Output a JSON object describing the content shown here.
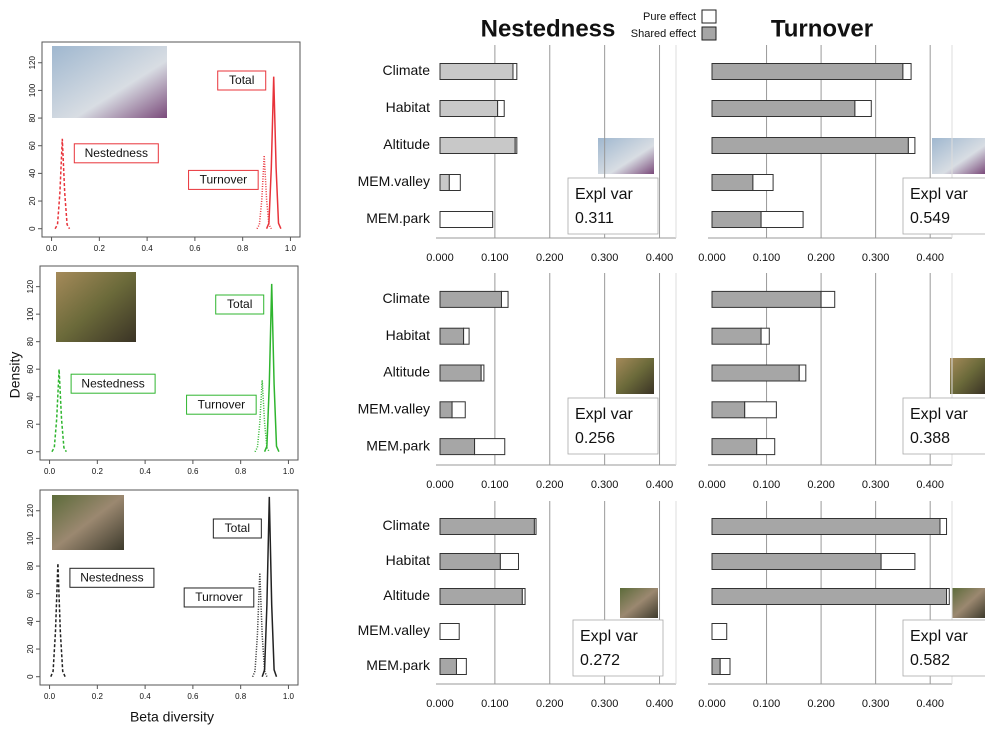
{
  "header": {
    "nestedness": "Nestedness",
    "turnover": "Turnover",
    "legend": [
      {
        "name": "Pure effect",
        "color": "#ffffff"
      },
      {
        "name": "Shared effect",
        "color": "#a6a6a6"
      }
    ],
    "y_label": "Density",
    "x_label": "Beta diversity"
  },
  "chart_data": [
    {
      "type": "line",
      "ylim": [
        -6,
        135
      ],
      "yticks": [
        0,
        20,
        40,
        60,
        80,
        100,
        120
      ],
      "xlim": [
        -0.04,
        1.04
      ],
      "xticks": [
        {
          "value": 0,
          "label": "0.0"
        },
        {
          "value": 0.2,
          "label": "0.2"
        },
        {
          "value": 0.4,
          "label": "0.4"
        },
        {
          "value": 0.6,
          "label": "0.6"
        },
        {
          "value": 0.8,
          "label": "0.8"
        },
        {
          "value": 1,
          "label": "1.0"
        }
      ],
      "series": [
        {
          "name": "Nestedness",
          "color": "#e8333a",
          "dash": "dashed",
          "x": [
            0.015,
            0.025,
            0.035,
            0.045,
            0.055,
            0.065,
            0.075
          ],
          "values": [
            0,
            3,
            26,
            65,
            26,
            3,
            0
          ]
        },
        {
          "name": "Turnover",
          "color": "#e8333a",
          "dash": "dotted",
          "x": [
            0.86,
            0.87,
            0.88,
            0.89,
            0.9,
            0.91,
            0.92
          ],
          "values": [
            0,
            3,
            21,
            53,
            21,
            3,
            0
          ]
        },
        {
          "name": "Total",
          "color": "#e8333a",
          "dash": "solid",
          "x": [
            0.9,
            0.91,
            0.92,
            0.93,
            0.94,
            0.95,
            0.96
          ],
          "values": [
            0,
            4,
            44,
            110,
            44,
            4,
            0
          ]
        }
      ]
    },
    {
      "type": "bar",
      "orientation": "horizontal",
      "stacked": true,
      "grid": true,
      "categories": [
        "Climate",
        "Habitat",
        "Altitude",
        "MEM.valley",
        "MEM.park"
      ],
      "series": [
        {
          "color": "#c8c8c8",
          "values": [
            0.133,
            0.105,
            0.137,
            0.017,
            0
          ]
        },
        {
          "color": "#ffffff",
          "values": [
            0.007,
            0.012,
            0.003,
            0.02,
            0.096
          ]
        }
      ],
      "xlim": [
        0,
        0.43
      ],
      "xticks": [
        {
          "value": 0,
          "label": "0.000"
        },
        {
          "value": 0.1,
          "label": "0.100"
        },
        {
          "value": 0.2,
          "label": "0.200"
        },
        {
          "value": 0.3,
          "label": "0.300"
        },
        {
          "value": 0.4,
          "label": "0.400"
        }
      ],
      "annotation_label": "Expl var",
      "annotation_value": 0.311
    },
    {
      "type": "bar",
      "orientation": "horizontal",
      "stacked": true,
      "grid": true,
      "series": [
        {
          "color": "#a6a6a6",
          "values": [
            0.35,
            0.262,
            0.36,
            0.075,
            0.09
          ]
        },
        {
          "color": "#ffffff",
          "values": [
            0.015,
            0.03,
            0.012,
            0.037,
            0.077
          ]
        }
      ],
      "xlim": [
        0,
        0.44
      ],
      "xticks": [
        {
          "value": 0,
          "label": "0.000"
        },
        {
          "value": 0.1,
          "label": "0.100"
        },
        {
          "value": 0.2,
          "label": "0.200"
        },
        {
          "value": 0.3,
          "label": "0.300"
        },
        {
          "value": 0.4,
          "label": "0.400"
        }
      ],
      "annotation_label": "Expl var",
      "annotation_value": 0.549
    },
    {
      "type": "line",
      "ylim": [
        -6,
        135
      ],
      "yticks": [
        0,
        20,
        40,
        60,
        80,
        100,
        120
      ],
      "xlim": [
        -0.04,
        1.04
      ],
      "xticks": [
        {
          "value": 0,
          "label": "0.0"
        },
        {
          "value": 0.2,
          "label": "0.2"
        },
        {
          "value": 0.4,
          "label": "0.4"
        },
        {
          "value": 0.6,
          "label": "0.6"
        },
        {
          "value": 0.8,
          "label": "0.8"
        },
        {
          "value": 1,
          "label": "1.0"
        }
      ],
      "series": [
        {
          "name": "Nestedness",
          "color": "#2fb52f",
          "dash": "dashed",
          "x": [
            0.01,
            0.02,
            0.03,
            0.04,
            0.05,
            0.06,
            0.07
          ],
          "values": [
            0,
            3,
            24,
            60,
            24,
            3,
            0
          ]
        },
        {
          "name": "Turnover",
          "color": "#2fb52f",
          "dash": "dotted",
          "x": [
            0.86,
            0.87,
            0.88,
            0.89,
            0.9,
            0.91,
            0.92
          ],
          "values": [
            0,
            3,
            21,
            52,
            21,
            3,
            0
          ]
        },
        {
          "name": "Total",
          "color": "#2fb52f",
          "dash": "solid",
          "x": [
            0.9,
            0.91,
            0.92,
            0.93,
            0.94,
            0.95,
            0.96
          ],
          "values": [
            0,
            4,
            49,
            122,
            49,
            4,
            0
          ]
        }
      ]
    },
    {
      "type": "bar",
      "orientation": "horizontal",
      "stacked": true,
      "grid": true,
      "categories": [
        "Climate",
        "Habitat",
        "Altitude",
        "MEM.valley",
        "MEM.park"
      ],
      "series": [
        {
          "color": "#a6a6a6",
          "values": [
            0.112,
            0.043,
            0.075,
            0.022,
            0.063
          ]
        },
        {
          "color": "#ffffff",
          "values": [
            0.012,
            0.01,
            0.005,
            0.024,
            0.055
          ]
        }
      ],
      "xlim": [
        0,
        0.43
      ],
      "xticks": [
        {
          "value": 0,
          "label": "0.000"
        },
        {
          "value": 0.1,
          "label": "0.100"
        },
        {
          "value": 0.2,
          "label": "0.200"
        },
        {
          "value": 0.3,
          "label": "0.300"
        },
        {
          "value": 0.4,
          "label": "0.400"
        }
      ],
      "annotation_label": "Expl var",
      "annotation_value": 0.256
    },
    {
      "type": "bar",
      "orientation": "horizontal",
      "stacked": true,
      "grid": true,
      "series": [
        {
          "color": "#a6a6a6",
          "values": [
            0.2,
            0.09,
            0.16,
            0.06,
            0.082
          ]
        },
        {
          "color": "#ffffff",
          "values": [
            0.025,
            0.015,
            0.012,
            0.058,
            0.033
          ]
        }
      ],
      "xlim": [
        0,
        0.44
      ],
      "xticks": [
        {
          "value": 0,
          "label": "0.000"
        },
        {
          "value": 0.1,
          "label": "0.100"
        },
        {
          "value": 0.2,
          "label": "0.200"
        },
        {
          "value": 0.3,
          "label": "0.300"
        },
        {
          "value": 0.4,
          "label": "0.400"
        }
      ],
      "annotation_label": "Expl var",
      "annotation_value": 0.388
    },
    {
      "type": "line",
      "ylim": [
        -6,
        135
      ],
      "yticks": [
        0,
        20,
        40,
        60,
        80,
        100,
        120
      ],
      "xlim": [
        -0.04,
        1.04
      ],
      "xticks": [
        {
          "value": 0,
          "label": "0.0"
        },
        {
          "value": 0.2,
          "label": "0.2"
        },
        {
          "value": 0.4,
          "label": "0.4"
        },
        {
          "value": 0.6,
          "label": "0.6"
        },
        {
          "value": 0.8,
          "label": "0.8"
        },
        {
          "value": 1,
          "label": "1.0"
        }
      ],
      "series": [
        {
          "name": "Nestedness",
          "color": "#222222",
          "dash": "dashed",
          "x": [
            0.005,
            0.015,
            0.025,
            0.035,
            0.045,
            0.055,
            0.065
          ],
          "values": [
            0,
            4,
            33,
            82,
            33,
            4,
            0
          ]
        },
        {
          "name": "Turnover",
          "color": "#222222",
          "dash": "dotted",
          "x": [
            0.85,
            0.86,
            0.87,
            0.88,
            0.89,
            0.9,
            0.91
          ],
          "values": [
            0,
            4,
            30,
            75,
            30,
            4,
            0
          ]
        },
        {
          "name": "Total",
          "color": "#222222",
          "dash": "solid",
          "x": [
            0.89,
            0.9,
            0.91,
            0.92,
            0.93,
            0.94,
            0.95
          ],
          "values": [
            0,
            5,
            52,
            130,
            52,
            5,
            0
          ]
        }
      ]
    },
    {
      "type": "bar",
      "orientation": "horizontal",
      "stacked": true,
      "grid": true,
      "categories": [
        "Climate",
        "Habitat",
        "Altitude",
        "MEM.valley",
        "MEM.park"
      ],
      "series": [
        {
          "color": "#a6a6a6",
          "values": [
            0.172,
            0.11,
            0.15,
            0,
            0.03
          ]
        },
        {
          "color": "#ffffff",
          "values": [
            0.003,
            0.033,
            0.005,
            0.035,
            0.018
          ]
        }
      ],
      "xlim": [
        0,
        0.43
      ],
      "xticks": [
        {
          "value": 0,
          "label": "0.000"
        },
        {
          "value": 0.1,
          "label": "0.100"
        },
        {
          "value": 0.2,
          "label": "0.200"
        },
        {
          "value": 0.3,
          "label": "0.300"
        },
        {
          "value": 0.4,
          "label": "0.400"
        }
      ],
      "annotation_label": "Expl var",
      "annotation_value": 0.272
    },
    {
      "type": "bar",
      "orientation": "horizontal",
      "stacked": true,
      "grid": true,
      "series": [
        {
          "color": "#a6a6a6",
          "values": [
            0.418,
            0.31,
            0.43,
            0,
            0.015
          ]
        },
        {
          "color": "#ffffff",
          "values": [
            0.012,
            0.062,
            0.005,
            0.027,
            0.018
          ]
        }
      ],
      "xlim": [
        0,
        0.44
      ],
      "xticks": [
        {
          "value": 0,
          "label": "0.000"
        },
        {
          "value": 0.1,
          "label": "0.100"
        },
        {
          "value": 0.2,
          "label": "0.200"
        },
        {
          "value": 0.3,
          "label": "0.300"
        },
        {
          "value": 0.4,
          "label": "0.400"
        }
      ],
      "annotation_label": "Expl var",
      "annotation_value": 0.582
    }
  ]
}
